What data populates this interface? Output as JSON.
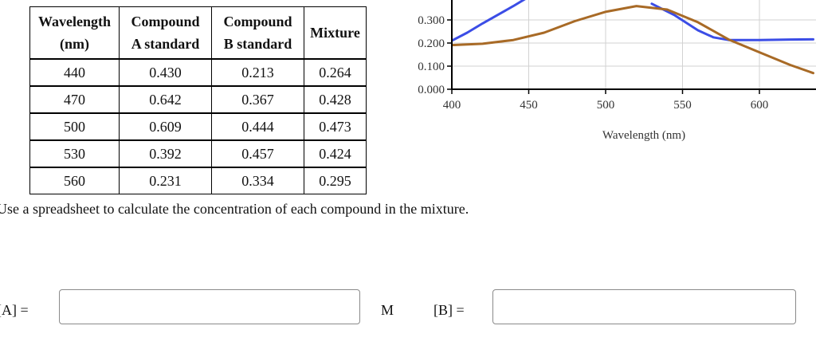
{
  "table": {
    "headers": [
      [
        "Wavelength",
        "(nm)"
      ],
      [
        "Compound",
        "A standard"
      ],
      [
        "Compound",
        "B standard"
      ],
      [
        "Mixture"
      ]
    ],
    "rows": [
      [
        "440",
        "0.430",
        "0.213",
        "0.264"
      ],
      [
        "470",
        "0.642",
        "0.367",
        "0.428"
      ],
      [
        "500",
        "0.609",
        "0.444",
        "0.473"
      ],
      [
        "530",
        "0.392",
        "0.457",
        "0.424"
      ],
      [
        "560",
        "0.231",
        "0.334",
        "0.295"
      ]
    ]
  },
  "chart_data": {
    "type": "line",
    "xlabel": "Wavelength (nm)",
    "ylabel": "",
    "xlim": [
      400,
      635
    ],
    "ylim": [
      0.0,
      0.35
    ],
    "xticks": [
      "400",
      "450",
      "500",
      "550",
      "600"
    ],
    "yticks": [
      "0.000",
      "0.100",
      "0.200",
      "0.300"
    ],
    "grid": true,
    "series": [
      {
        "color": "#3b4de6",
        "x": [
          400,
          410,
          420,
          432,
          440,
          450
        ],
        "y": [
          0.21,
          0.245,
          0.285,
          0.33,
          0.36,
          0.4
        ]
      },
      {
        "color": "#3b4de6",
        "x": [
          530,
          545,
          560,
          570,
          580,
          600,
          620,
          635
        ],
        "y": [
          0.37,
          0.32,
          0.255,
          0.225,
          0.213,
          0.213,
          0.215,
          0.216
        ]
      },
      {
        "color": "#a86a26",
        "x": [
          400,
          420,
          440,
          460,
          480,
          500,
          520,
          540,
          560,
          580,
          600,
          620,
          635
        ],
        "y": [
          0.191,
          0.197,
          0.213,
          0.245,
          0.295,
          0.335,
          0.36,
          0.345,
          0.29,
          0.215,
          0.16,
          0.105,
          0.07
        ]
      }
    ]
  },
  "question": {
    "text": "Use a spreadsheet to calculate the concentration of each compound in the mixture.",
    "a_label": "[A] =",
    "unit": "M",
    "b_label": "[B] ="
  }
}
